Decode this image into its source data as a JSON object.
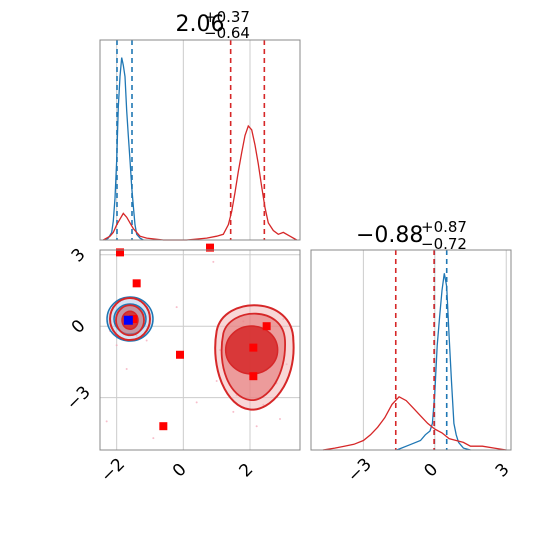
{
  "colors": {
    "blue": "#1f77b4",
    "red": "#d62728",
    "grid": "#cccccc",
    "frame": "#888888",
    "marker_red": "#ff0000",
    "marker_blue": "#0000ff"
  },
  "chart_data": [
    {
      "type": "histogram",
      "panel": "x1-marginal",
      "title": {
        "median": "2.06",
        "plus": "+0.37",
        "minus": "−0.64"
      },
      "xlim": [
        -2.5,
        3.5
      ],
      "grid": true,
      "series": [
        {
          "name": "",
          "color": "#1f77b4",
          "x": [
            -2.35,
            -2.25,
            -2.15,
            -2.1,
            -2.05,
            -2.0,
            -1.95,
            -1.9,
            -1.85,
            -1.8,
            -1.75,
            -1.7,
            -1.65,
            -1.6,
            -1.55,
            -1.5,
            -1.45,
            -1.4,
            -1.3,
            -1.2
          ],
          "y": [
            0.0,
            0.01,
            0.04,
            0.1,
            0.22,
            0.42,
            0.7,
            0.86,
            0.96,
            0.92,
            0.86,
            0.68,
            0.55,
            0.42,
            0.28,
            0.18,
            0.08,
            0.03,
            0.01,
            0.0
          ],
          "quantile_lines": [
            -1.99,
            -1.54
          ]
        },
        {
          "name": "",
          "color": "#d62728",
          "x": [
            -2.4,
            -2.3,
            -2.2,
            -2.1,
            -2.0,
            -1.9,
            -1.8,
            -1.7,
            -1.6,
            -1.5,
            -1.4,
            -1.3,
            -1.1,
            -0.6,
            0.1,
            0.7,
            1.0,
            1.2,
            1.35,
            1.45,
            1.55,
            1.65,
            1.75,
            1.85,
            1.95,
            2.05,
            2.15,
            2.25,
            2.35,
            2.45,
            2.55,
            2.7,
            2.85,
            3.0,
            3.2,
            3.4
          ],
          "y": [
            0.0,
            0.01,
            0.02,
            0.04,
            0.08,
            0.11,
            0.14,
            0.12,
            0.09,
            0.06,
            0.04,
            0.02,
            0.01,
            0.0,
            0.0,
            0.01,
            0.02,
            0.03,
            0.08,
            0.15,
            0.25,
            0.36,
            0.46,
            0.55,
            0.6,
            0.58,
            0.5,
            0.4,
            0.28,
            0.17,
            0.09,
            0.05,
            0.03,
            0.04,
            0.02,
            0.0
          ],
          "quantile_lines": [
            1.42,
            2.43
          ]
        }
      ]
    },
    {
      "type": "scatter-contour",
      "panel": "joint",
      "xlim": [
        -2.5,
        3.5
      ],
      "ylim": [
        -5.2,
        3.2
      ],
      "x_ticks": [
        "−2",
        "0",
        "2"
      ],
      "y_ticks": [
        "3",
        "0",
        "−3"
      ],
      "grid": true,
      "red_markers": [
        [
          -1.9,
          3.1
        ],
        [
          0.8,
          3.3
        ],
        [
          -1.4,
          1.8
        ],
        [
          -1.5,
          0.3
        ],
        [
          -0.1,
          -1.2
        ],
        [
          2.5,
          0.0
        ],
        [
          2.1,
          -0.9
        ],
        [
          2.1,
          -2.1
        ],
        [
          -0.6,
          -4.2
        ]
      ],
      "blue_markers": [
        [
          -1.65,
          0.25
        ]
      ]
    },
    {
      "type": "histogram",
      "panel": "x2-marginal",
      "title": {
        "median": "−0.88",
        "plus": "+0.87",
        "minus": "−0.72"
      },
      "xlim": [
        -5.2,
        3.2
      ],
      "x_ticks": [
        "−3",
        "0",
        "3"
      ],
      "grid": true,
      "series": [
        {
          "name": "",
          "color": "#1f77b4",
          "x": [
            -1.6,
            -1.0,
            -0.6,
            -0.4,
            -0.2,
            -0.1,
            0.0,
            0.1,
            0.2,
            0.3,
            0.4,
            0.5,
            0.6,
            0.7,
            0.8,
            0.9,
            1.0,
            1.2,
            1.5
          ],
          "y": [
            0.0,
            0.03,
            0.05,
            0.08,
            0.1,
            0.14,
            0.3,
            0.55,
            0.7,
            0.84,
            0.93,
            0.86,
            0.6,
            0.36,
            0.14,
            0.08,
            0.04,
            0.01,
            0.0
          ],
          "quantile_lines": [
            -0.02,
            0.5
          ]
        },
        {
          "name": "",
          "color": "#d62728",
          "x": [
            -4.7,
            -4.2,
            -3.8,
            -3.4,
            -3.0,
            -2.7,
            -2.4,
            -2.1,
            -1.8,
            -1.5,
            -1.2,
            -0.9,
            -0.6,
            -0.3,
            0.0,
            0.3,
            0.6,
            0.9,
            1.2,
            1.5,
            2.0,
            2.5,
            3.0
          ],
          "y": [
            0.0,
            0.01,
            0.02,
            0.03,
            0.05,
            0.08,
            0.12,
            0.17,
            0.24,
            0.28,
            0.26,
            0.22,
            0.18,
            0.14,
            0.11,
            0.09,
            0.06,
            0.05,
            0.04,
            0.02,
            0.02,
            0.01,
            0.0
          ],
          "quantile_lines": [
            -1.64,
            -0.03
          ]
        }
      ]
    }
  ]
}
